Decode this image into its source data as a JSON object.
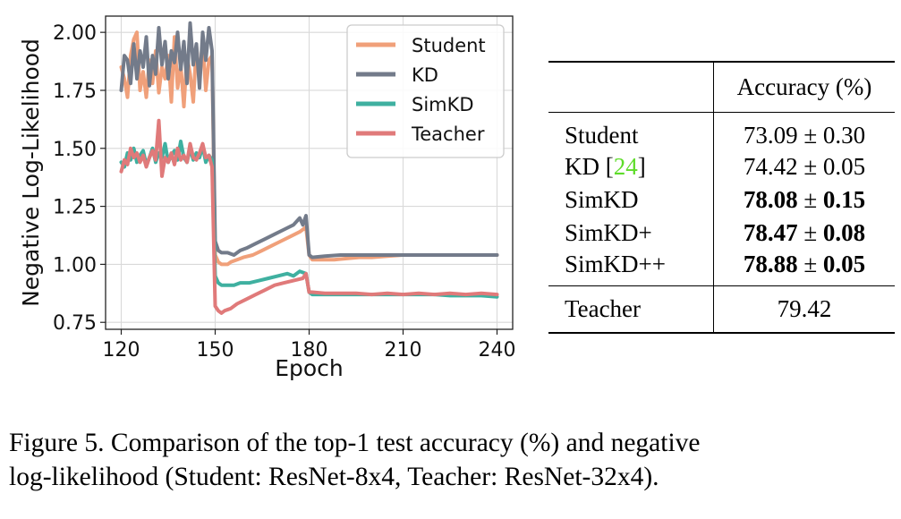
{
  "chart_data": {
    "type": "line",
    "title": "",
    "xlabel": "Epoch",
    "ylabel": "Negative Log-Likelihood",
    "xlim": [
      115,
      245
    ],
    "ylim": [
      0.72,
      2.07
    ],
    "xticks": [
      120,
      150,
      180,
      210,
      240
    ],
    "yticks": [
      0.75,
      1.0,
      1.25,
      1.5,
      1.75,
      2.0
    ],
    "ytick_labels": [
      "0.75",
      "1.00",
      "1.25",
      "1.50",
      "1.75",
      "2.00"
    ],
    "grid": true,
    "legend_position": "top-right",
    "series": [
      {
        "name": "Student",
        "color": "#f0a07a",
        "points": [
          [
            120,
            1.85
          ],
          [
            121,
            1.8
          ],
          [
            122,
            1.72
          ],
          [
            123,
            1.9
          ],
          [
            124,
            1.97
          ],
          [
            125,
            2.0
          ],
          [
            126,
            1.75
          ],
          [
            127,
            1.83
          ],
          [
            128,
            1.72
          ],
          [
            129,
            1.88
          ],
          [
            130,
            1.78
          ],
          [
            131,
            1.92
          ],
          [
            132,
            1.74
          ],
          [
            133,
            1.85
          ],
          [
            134,
            1.8
          ],
          [
            135,
            1.9
          ],
          [
            136,
            1.7
          ],
          [
            137,
            1.98
          ],
          [
            138,
            1.76
          ],
          [
            139,
            1.86
          ],
          [
            140,
            1.68
          ],
          [
            141,
            1.9
          ],
          [
            142,
            1.82
          ],
          [
            143,
            1.7
          ],
          [
            144,
            1.94
          ],
          [
            145,
            1.8
          ],
          [
            146,
            1.96
          ],
          [
            147,
            1.75
          ],
          [
            148,
            1.88
          ],
          [
            149,
            1.9
          ],
          [
            150,
            1.04
          ],
          [
            151,
            1.01
          ],
          [
            152,
            1.0
          ],
          [
            153,
            1.0
          ],
          [
            154,
            1.0
          ],
          [
            155,
            1.01
          ],
          [
            157,
            1.02
          ],
          [
            159,
            1.03
          ],
          [
            162,
            1.04
          ],
          [
            165,
            1.06
          ],
          [
            168,
            1.08
          ],
          [
            171,
            1.1
          ],
          [
            174,
            1.12
          ],
          [
            177,
            1.14
          ],
          [
            179,
            1.16
          ],
          [
            180,
            1.04
          ],
          [
            181,
            1.02
          ],
          [
            184,
            1.02
          ],
          [
            188,
            1.02
          ],
          [
            192,
            1.025
          ],
          [
            196,
            1.03
          ],
          [
            200,
            1.03
          ],
          [
            205,
            1.035
          ],
          [
            210,
            1.04
          ],
          [
            215,
            1.04
          ],
          [
            220,
            1.04
          ],
          [
            225,
            1.04
          ],
          [
            230,
            1.04
          ],
          [
            235,
            1.04
          ],
          [
            240,
            1.04
          ]
        ]
      },
      {
        "name": "KD",
        "color": "#737b8a",
        "points": [
          [
            120,
            1.75
          ],
          [
            121,
            1.9
          ],
          [
            122,
            1.88
          ],
          [
            123,
            1.78
          ],
          [
            124,
            1.95
          ],
          [
            125,
            1.8
          ],
          [
            126,
            1.92
          ],
          [
            127,
            1.85
          ],
          [
            128,
            1.98
          ],
          [
            129,
            1.77
          ],
          [
            130,
            1.9
          ],
          [
            131,
            1.82
          ],
          [
            132,
            2.02
          ],
          [
            133,
            1.86
          ],
          [
            134,
            1.96
          ],
          [
            135,
            1.8
          ],
          [
            136,
            1.92
          ],
          [
            137,
            1.87
          ],
          [
            138,
            2.0
          ],
          [
            139,
            1.84
          ],
          [
            140,
            1.96
          ],
          [
            141,
            1.78
          ],
          [
            142,
            2.04
          ],
          [
            143,
            1.86
          ],
          [
            144,
            1.95
          ],
          [
            145,
            1.76
          ],
          [
            146,
            2.0
          ],
          [
            147,
            1.88
          ],
          [
            148,
            2.02
          ],
          [
            149,
            1.92
          ],
          [
            150,
            1.1
          ],
          [
            151,
            1.06
          ],
          [
            152,
            1.05
          ],
          [
            154,
            1.05
          ],
          [
            156,
            1.04
          ],
          [
            158,
            1.06
          ],
          [
            160,
            1.07
          ],
          [
            163,
            1.09
          ],
          [
            166,
            1.11
          ],
          [
            169,
            1.13
          ],
          [
            172,
            1.15
          ],
          [
            175,
            1.17
          ],
          [
            177,
            1.2
          ],
          [
            178,
            1.17
          ],
          [
            179,
            1.21
          ],
          [
            180,
            1.04
          ],
          [
            181,
            1.03
          ],
          [
            185,
            1.035
          ],
          [
            190,
            1.04
          ],
          [
            195,
            1.04
          ],
          [
            200,
            1.04
          ],
          [
            205,
            1.04
          ],
          [
            210,
            1.04
          ],
          [
            215,
            1.04
          ],
          [
            220,
            1.04
          ],
          [
            225,
            1.04
          ],
          [
            230,
            1.04
          ],
          [
            235,
            1.04
          ],
          [
            240,
            1.04
          ]
        ]
      },
      {
        "name": "SimKD",
        "color": "#3fb0a0",
        "points": [
          [
            120,
            1.44
          ],
          [
            121,
            1.42
          ],
          [
            122,
            1.48
          ],
          [
            123,
            1.45
          ],
          [
            124,
            1.5
          ],
          [
            125,
            1.44
          ],
          [
            126,
            1.47
          ],
          [
            127,
            1.49
          ],
          [
            128,
            1.43
          ],
          [
            129,
            1.46
          ],
          [
            130,
            1.5
          ],
          [
            131,
            1.44
          ],
          [
            132,
            1.48
          ],
          [
            133,
            1.46
          ],
          [
            134,
            1.52
          ],
          [
            135,
            1.44
          ],
          [
            136,
            1.47
          ],
          [
            137,
            1.49
          ],
          [
            138,
            1.45
          ],
          [
            139,
            1.53
          ],
          [
            140,
            1.46
          ],
          [
            141,
            1.44
          ],
          [
            142,
            1.5
          ],
          [
            143,
            1.45
          ],
          [
            144,
            1.48
          ],
          [
            145,
            1.46
          ],
          [
            146,
            1.51
          ],
          [
            147,
            1.44
          ],
          [
            148,
            1.47
          ],
          [
            149,
            1.45
          ],
          [
            150,
            0.95
          ],
          [
            151,
            0.92
          ],
          [
            152,
            0.91
          ],
          [
            154,
            0.91
          ],
          [
            156,
            0.91
          ],
          [
            158,
            0.92
          ],
          [
            161,
            0.92
          ],
          [
            164,
            0.93
          ],
          [
            167,
            0.94
          ],
          [
            170,
            0.95
          ],
          [
            173,
            0.96
          ],
          [
            175,
            0.95
          ],
          [
            177,
            0.97
          ],
          [
            179,
            0.96
          ],
          [
            180,
            0.88
          ],
          [
            181,
            0.87
          ],
          [
            185,
            0.87
          ],
          [
            190,
            0.87
          ],
          [
            195,
            0.87
          ],
          [
            200,
            0.87
          ],
          [
            205,
            0.87
          ],
          [
            210,
            0.87
          ],
          [
            215,
            0.87
          ],
          [
            220,
            0.87
          ],
          [
            225,
            0.865
          ],
          [
            230,
            0.865
          ],
          [
            235,
            0.865
          ],
          [
            240,
            0.86
          ]
        ]
      },
      {
        "name": "Teacher",
        "color": "#e07a7a",
        "points": [
          [
            120,
            1.4
          ],
          [
            121,
            1.45
          ],
          [
            122,
            1.43
          ],
          [
            123,
            1.5
          ],
          [
            124,
            1.46
          ],
          [
            125,
            1.48
          ],
          [
            126,
            1.44
          ],
          [
            127,
            1.47
          ],
          [
            128,
            1.42
          ],
          [
            129,
            1.46
          ],
          [
            130,
            1.49
          ],
          [
            131,
            1.45
          ],
          [
            132,
            1.62
          ],
          [
            133,
            1.38
          ],
          [
            134,
            1.46
          ],
          [
            135,
            1.44
          ],
          [
            136,
            1.48
          ],
          [
            137,
            1.43
          ],
          [
            138,
            1.5
          ],
          [
            139,
            1.45
          ],
          [
            140,
            1.47
          ],
          [
            141,
            1.44
          ],
          [
            142,
            1.52
          ],
          [
            143,
            1.46
          ],
          [
            144,
            1.45
          ],
          [
            145,
            1.48
          ],
          [
            146,
            1.52
          ],
          [
            147,
            1.46
          ],
          [
            148,
            1.47
          ],
          [
            149,
            1.42
          ],
          [
            150,
            0.82
          ],
          [
            151,
            0.8
          ],
          [
            152,
            0.79
          ],
          [
            153,
            0.8
          ],
          [
            155,
            0.81
          ],
          [
            157,
            0.83
          ],
          [
            160,
            0.85
          ],
          [
            163,
            0.87
          ],
          [
            166,
            0.89
          ],
          [
            169,
            0.91
          ],
          [
            172,
            0.92
          ],
          [
            175,
            0.93
          ],
          [
            178,
            0.94
          ],
          [
            179,
            0.96
          ],
          [
            180,
            0.88
          ],
          [
            181,
            0.88
          ],
          [
            185,
            0.875
          ],
          [
            190,
            0.875
          ],
          [
            195,
            0.875
          ],
          [
            200,
            0.87
          ],
          [
            205,
            0.875
          ],
          [
            210,
            0.87
          ],
          [
            215,
            0.875
          ],
          [
            220,
            0.87
          ],
          [
            225,
            0.875
          ],
          [
            230,
            0.87
          ],
          [
            235,
            0.875
          ],
          [
            240,
            0.87
          ]
        ]
      }
    ]
  },
  "table": {
    "header": {
      "method": "",
      "accuracy": "Accuracy (%)"
    },
    "rows": [
      {
        "method": "Student",
        "mean": "73.09",
        "pm": "±",
        "std": "0.30",
        "bold": false
      },
      {
        "method": "KD",
        "cite": "24",
        "mean": "74.42",
        "pm": "±",
        "std": "0.05",
        "bold": false
      },
      {
        "method": "SimKD",
        "mean": "78.08",
        "pm": "±",
        "std": "0.15",
        "bold": true
      },
      {
        "method": "SimKD+",
        "mean": "78.47",
        "pm": "±",
        "std": "0.08",
        "bold": true
      },
      {
        "method": "SimKD++",
        "mean": "78.88",
        "pm": "±",
        "std": "0.05",
        "bold": true
      }
    ],
    "footer": {
      "method": "Teacher",
      "accuracy": "79.42"
    }
  },
  "caption": {
    "line1": "Figure 5. Comparison of the top-1 test accuracy (%) and negative",
    "line2": "log-likelihood (Student: ResNet-8x4, Teacher: ResNet-32x4)."
  }
}
